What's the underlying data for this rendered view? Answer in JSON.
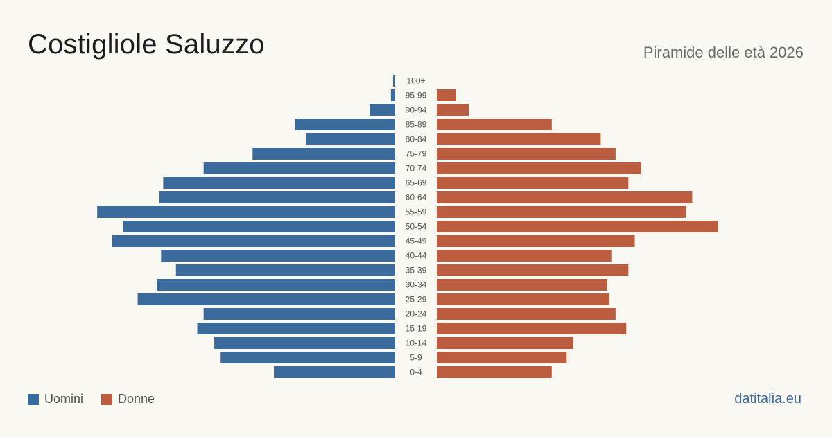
{
  "header": {
    "title": "Costigliole Saluzzo",
    "subtitle": "Piramide delle età 2026"
  },
  "legend": {
    "men_label": "Uomini",
    "women_label": "Donne"
  },
  "brand": "datitalia.eu",
  "colors": {
    "men": "#3b6a9c",
    "women": "#bb5e3f",
    "background": "#faf8f3",
    "age_label": "#555555"
  },
  "chart_data": {
    "type": "bar",
    "orientation": "horizontal-pyramid",
    "categories": [
      "100+",
      "95-99",
      "90-94",
      "85-89",
      "80-84",
      "75-79",
      "70-74",
      "65-69",
      "60-64",
      "55-59",
      "50-54",
      "45-49",
      "40-44",
      "35-39",
      "30-34",
      "25-29",
      "20-24",
      "15-19",
      "10-14",
      "5-9",
      "0-4"
    ],
    "series": [
      {
        "name": "Uomini",
        "values": [
          1,
          2,
          12,
          47,
          42,
          67,
          90,
          109,
          111,
          140,
          128,
          133,
          110,
          103,
          112,
          121,
          90,
          93,
          85,
          82,
          57
        ]
      },
      {
        "name": "Donne",
        "values": [
          0,
          9,
          15,
          54,
          77,
          84,
          96,
          90,
          120,
          117,
          132,
          93,
          82,
          90,
          80,
          81,
          84,
          89,
          64,
          61,
          54
        ]
      }
    ],
    "xlabel": "",
    "ylabel": "",
    "grid": false,
    "legend": "bottom-left"
  }
}
